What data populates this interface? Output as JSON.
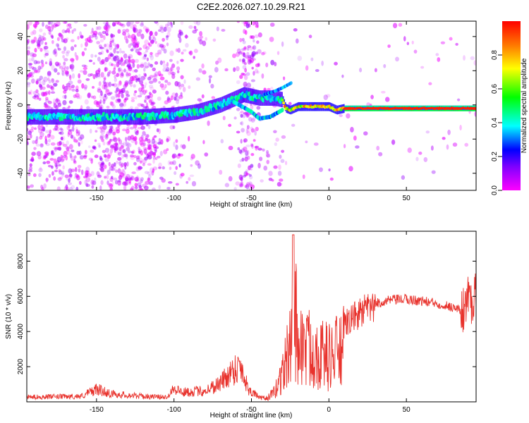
{
  "title": "C2E2.2026.027.10.29.R21",
  "colors": {
    "snr_line": "#e8322c",
    "frame": "#000000",
    "background": "#ffffff"
  },
  "colormap": [
    "#ff00ff",
    "#7f00ff",
    "#0000ff",
    "#00ffff",
    "#00ff00",
    "#ffff00",
    "#ff7f00",
    "#ff0000"
  ],
  "chart_data": [
    {
      "type": "heatmap",
      "title": "",
      "xlabel": "Height of straight line (km)",
      "ylabel": "Frequency (Hz)",
      "xlim": [
        -195,
        95
      ],
      "ylim": [
        -50,
        49
      ],
      "xticks": [
        -150,
        -100,
        -50,
        0,
        50
      ],
      "yticks": [
        -40,
        -20,
        0,
        20,
        40
      ],
      "colorbar": {
        "label": "Normalized spectral amplitude",
        "range": [
          0,
          1
        ],
        "ticks": [
          "0.0",
          "0.2",
          "0.4",
          "0.6",
          "0.8"
        ]
      },
      "ridge": {
        "description_points_x": [
          -195,
          -150,
          -120,
          -100,
          -85,
          -70,
          -60,
          -55,
          -50,
          -45,
          -40,
          -35,
          -30,
          -28,
          -25,
          -20,
          -10,
          0,
          5,
          10,
          95
        ],
        "description_points_y": [
          -7,
          -7,
          -7,
          -6,
          -4,
          0,
          4,
          6,
          5,
          4,
          4,
          4,
          3,
          -2,
          -3,
          -1,
          -1,
          -1,
          -3,
          -2,
          -2
        ]
      }
    },
    {
      "type": "line",
      "title": "",
      "xlabel": "Height of straight line (km)",
      "ylabel": "SNR (10 * v/v)",
      "xlim": [
        -195,
        95
      ],
      "ylim": [
        0,
        9700
      ],
      "xticks": [
        -150,
        -100,
        -50,
        0,
        50
      ],
      "yticks": [
        2000,
        4000,
        6000,
        8000
      ],
      "series": [
        {
          "name": "SNR",
          "envelope_x": [
            -195,
            -160,
            -150,
            -140,
            -120,
            -105,
            -100,
            -95,
            -80,
            -70,
            -62,
            -57,
            -52,
            -45,
            -40,
            -35,
            -30,
            -25,
            -23,
            -20,
            -15,
            -10,
            -5,
            0,
            5,
            10,
            20,
            30,
            40,
            50,
            60,
            70,
            80,
            85,
            90,
            95
          ],
          "envelope_y": [
            300,
            350,
            800,
            500,
            350,
            300,
            900,
            600,
            700,
            1200,
            2000,
            2300,
            800,
            300,
            300,
            800,
            2500,
            4500,
            9500,
            5000,
            4500,
            4500,
            4000,
            3800,
            4200,
            4600,
            5300,
            5700,
            5900,
            5950,
            5850,
            5700,
            5500,
            5300,
            6200,
            6400
          ]
        }
      ]
    }
  ]
}
